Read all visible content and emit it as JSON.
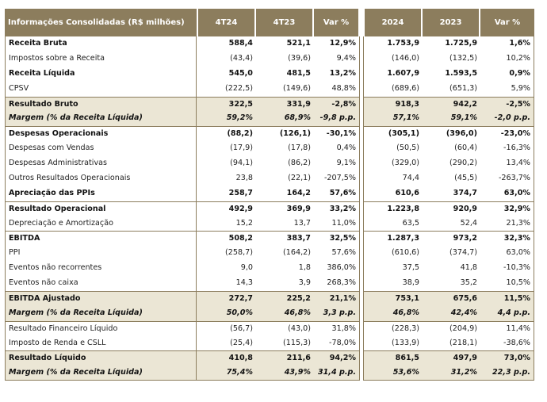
{
  "header": {
    "title": "Informações Consolidadas (R$ milhões)",
    "columns": [
      "4T24",
      "4T23",
      "Var %",
      "2024",
      "2023",
      "Var %"
    ]
  },
  "rows": [
    {
      "label": "Receita Bruta",
      "values": [
        "588,4",
        "521,1",
        "12,9%",
        "1.753,9",
        "1.725,9",
        "1,6%"
      ],
      "style": "bold",
      "shade": false,
      "topline": false
    },
    {
      "label": "Impostos sobre a Receita",
      "values": [
        "(43,4)",
        "(39,6)",
        "9,4%",
        "(146,0)",
        "(132,5)",
        "10,2%"
      ],
      "style": "normal",
      "shade": false,
      "topline": false
    },
    {
      "label": "Receita Líquida",
      "values": [
        "545,0",
        "481,5",
        "13,2%",
        "1.607,9",
        "1.593,5",
        "0,9%"
      ],
      "style": "bold",
      "shade": false,
      "topline": false
    },
    {
      "label": "CPSV",
      "values": [
        "(222,5)",
        "(149,6)",
        "48,8%",
        "(689,6)",
        "(651,3)",
        "5,9%"
      ],
      "style": "normal",
      "shade": false,
      "topline": false
    },
    {
      "label": "Resultado Bruto",
      "values": [
        "322,5",
        "331,9",
        "-2,8%",
        "918,3",
        "942,2",
        "-2,5%"
      ],
      "style": "bold",
      "shade": true,
      "topline": true
    },
    {
      "label": "Margem (% da Receita Líquida)",
      "values": [
        "59,2%",
        "68,9%",
        "-9,8 p.p.",
        "57,1%",
        "59,1%",
        "-2,0 p.p."
      ],
      "style": "bold-italic",
      "shade": true,
      "topline": false
    },
    {
      "label": "Despesas Operacionais",
      "values": [
        "(88,2)",
        "(126,1)",
        "-30,1%",
        "(305,1)",
        "(396,0)",
        "-23,0%"
      ],
      "style": "bold",
      "shade": false,
      "topline": true
    },
    {
      "label": "Despesas com Vendas",
      "values": [
        "(17,9)",
        "(17,8)",
        "0,4%",
        "(50,5)",
        "(60,4)",
        "-16,3%"
      ],
      "style": "normal",
      "shade": false,
      "topline": false
    },
    {
      "label": "Despesas Administrativas",
      "values": [
        "(94,1)",
        "(86,2)",
        "9,1%",
        "(329,0)",
        "(290,2)",
        "13,4%"
      ],
      "style": "normal",
      "shade": false,
      "topline": false
    },
    {
      "label": "Outros Resultados Operacionais",
      "values": [
        "23,8",
        "(22,1)",
        "-207,5%",
        "74,4",
        "(45,5)",
        "-263,7%"
      ],
      "style": "normal",
      "shade": false,
      "topline": false
    },
    {
      "label": "Apreciação das PPIs",
      "values": [
        "258,7",
        "164,2",
        "57,6%",
        "610,6",
        "374,7",
        "63,0%"
      ],
      "style": "bold",
      "shade": false,
      "topline": false
    },
    {
      "label": "Resultado Operacional",
      "values": [
        "492,9",
        "369,9",
        "33,2%",
        "1.223,8",
        "920,9",
        "32,9%"
      ],
      "style": "bold",
      "shade": false,
      "topline": true
    },
    {
      "label": "Depreciação e Amortização",
      "values": [
        "15,2",
        "13,7",
        "11,0%",
        "63,5",
        "52,4",
        "21,3%"
      ],
      "style": "normal",
      "shade": false,
      "topline": false
    },
    {
      "label": "EBITDA",
      "values": [
        "508,2",
        "383,7",
        "32,5%",
        "1.287,3",
        "973,2",
        "32,3%"
      ],
      "style": "bold",
      "shade": false,
      "topline": true
    },
    {
      "label": "PPI",
      "values": [
        "(258,7)",
        "(164,2)",
        "57,6%",
        "(610,6)",
        "(374,7)",
        "63,0%"
      ],
      "style": "normal",
      "shade": false,
      "topline": false
    },
    {
      "label": "Eventos não recorrentes",
      "values": [
        "9,0",
        "1,8",
        "386,0%",
        "37,5",
        "41,8",
        "-10,3%"
      ],
      "style": "normal",
      "shade": false,
      "topline": false
    },
    {
      "label": "Eventos não caixa",
      "values": [
        "14,3",
        "3,9",
        "268,3%",
        "38,9",
        "35,2",
        "10,5%"
      ],
      "style": "normal",
      "shade": false,
      "topline": false
    },
    {
      "label": "EBITDA Ajustado",
      "values": [
        "272,7",
        "225,2",
        "21,1%",
        "753,1",
        "675,6",
        "11,5%"
      ],
      "style": "bold",
      "shade": true,
      "topline": true
    },
    {
      "label": "Margem (% da Receita Líquida)",
      "values": [
        "50,0%",
        "46,8%",
        "3,3 p.p.",
        "46,8%",
        "42,4%",
        "4,4 p.p."
      ],
      "style": "bold-italic",
      "shade": true,
      "topline": false
    },
    {
      "label": "Resultado Financeiro Líquido",
      "values": [
        "(56,7)",
        "(43,0)",
        "31,8%",
        "(228,3)",
        "(204,9)",
        "11,4%"
      ],
      "style": "normal",
      "shade": false,
      "topline": true
    },
    {
      "label": "Imposto de Renda e CSLL",
      "values": [
        "(25,4)",
        "(115,3)",
        "-78,0%",
        "(133,9)",
        "(218,1)",
        "-38,6%"
      ],
      "style": "normal",
      "shade": false,
      "topline": false
    },
    {
      "label": "Resultado Líquido",
      "values": [
        "410,8",
        "211,6",
        "94,2%",
        "861,5",
        "497,9",
        "73,0%"
      ],
      "style": "bold",
      "shade": true,
      "topline": true
    },
    {
      "label": "Margem (% da Receita Líquida)",
      "values": [
        "75,4%",
        "43,9%",
        "31,4 p.p.",
        "53,6%",
        "31,2%",
        "22,3 p.p."
      ],
      "style": "bold-italic",
      "shade": true,
      "topline": false
    }
  ],
  "colors": {
    "header_bg": "#8c7d5d",
    "shade_bg": "#ebe6d5",
    "border": "#8c7d5d"
  }
}
